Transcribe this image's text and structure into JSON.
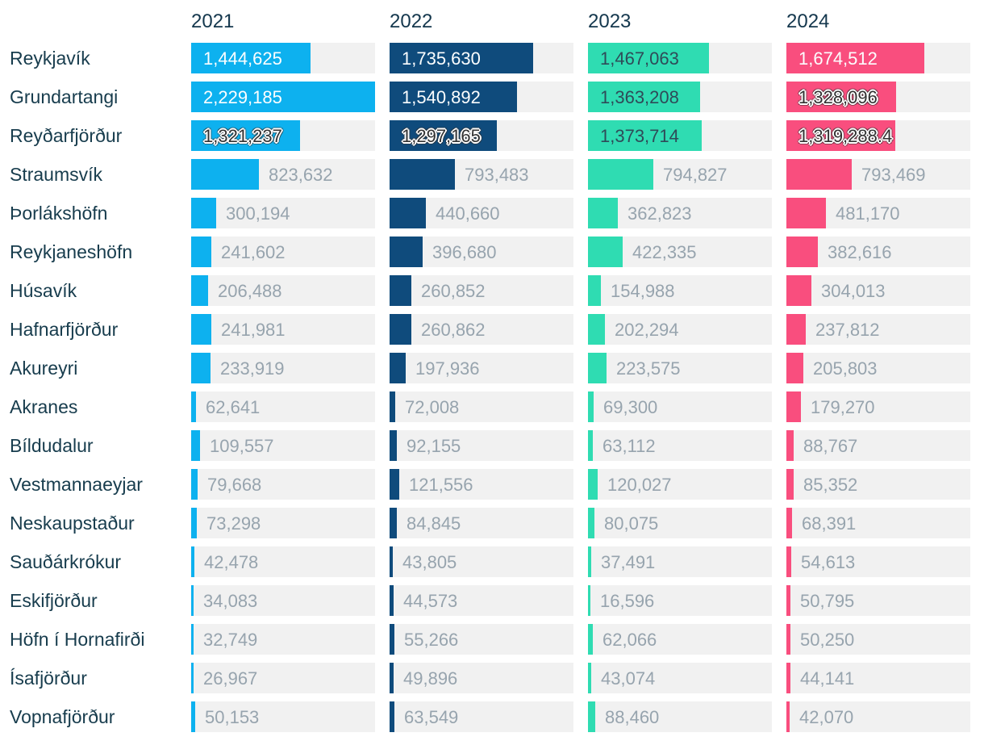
{
  "chart_data": {
    "type": "bar",
    "orientation": "horizontal",
    "legend_position": "top-column-headers",
    "grid": false,
    "columns": [
      "2021",
      "2022",
      "2023",
      "2024"
    ],
    "max_value": 2229185,
    "series_colors": {
      "2021": "#0DB1EF",
      "2022": "#0F4B7C",
      "2023": "#2FDCB2",
      "2024": "#F94E7E"
    },
    "rows": [
      {
        "label": "Reykjavík",
        "values": [
          1444625,
          1735630,
          1467063,
          1674512
        ],
        "outlined": [
          false,
          false,
          false,
          false
        ]
      },
      {
        "label": "Grundartangi",
        "values": [
          2229185,
          1540892,
          1363208,
          1328096
        ],
        "outlined": [
          false,
          false,
          false,
          true
        ]
      },
      {
        "label": "Reyðarfjörður",
        "values": [
          1321237,
          1297165,
          1373714,
          1319288.4
        ],
        "outlined": [
          true,
          true,
          false,
          true
        ]
      },
      {
        "label": "Straumsvík",
        "values": [
          823632,
          793483,
          794827,
          793469
        ],
        "outlined": [
          false,
          false,
          false,
          false
        ]
      },
      {
        "label": "Þorlákshöfn",
        "values": [
          300194,
          440660,
          362823,
          481170
        ],
        "outlined": [
          false,
          false,
          false,
          false
        ]
      },
      {
        "label": "Reykjaneshöfn",
        "values": [
          241602,
          396680,
          422335,
          382616
        ],
        "outlined": [
          false,
          false,
          false,
          false
        ]
      },
      {
        "label": "Húsavík",
        "values": [
          206488,
          260852,
          154988,
          304013
        ],
        "outlined": [
          false,
          false,
          false,
          false
        ]
      },
      {
        "label": "Hafnarfjörður",
        "values": [
          241981,
          260862,
          202294,
          237812
        ],
        "outlined": [
          false,
          false,
          false,
          false
        ]
      },
      {
        "label": "Akureyri",
        "values": [
          233919,
          197936,
          223575,
          205803
        ],
        "outlined": [
          false,
          false,
          false,
          false
        ]
      },
      {
        "label": "Akranes",
        "values": [
          62641,
          72008,
          69300,
          179270
        ],
        "outlined": [
          false,
          false,
          false,
          false
        ]
      },
      {
        "label": "Bíldudalur",
        "values": [
          109557,
          92155,
          63112,
          88767
        ],
        "outlined": [
          false,
          false,
          false,
          false
        ]
      },
      {
        "label": "Vestmannaeyjar",
        "values": [
          79668,
          121556,
          120027,
          85352
        ],
        "outlined": [
          false,
          false,
          false,
          false
        ]
      },
      {
        "label": "Neskaupstaður",
        "values": [
          73298,
          84845,
          80075,
          68391
        ],
        "outlined": [
          false,
          false,
          false,
          false
        ]
      },
      {
        "label": "Sauðárkrókur",
        "values": [
          42478,
          43805,
          37491,
          54613
        ],
        "outlined": [
          false,
          false,
          false,
          false
        ]
      },
      {
        "label": "Eskifjörður",
        "values": [
          34083,
          44573,
          16596,
          50795
        ],
        "outlined": [
          false,
          false,
          false,
          false
        ]
      },
      {
        "label": "Höfn í Hornafirði",
        "values": [
          32749,
          55266,
          62066,
          50250
        ],
        "outlined": [
          false,
          false,
          false,
          false
        ]
      },
      {
        "label": "Ísafjörður",
        "values": [
          26967,
          49896,
          43074,
          44141
        ],
        "outlined": [
          false,
          false,
          false,
          false
        ]
      },
      {
        "label": "Vopnafjörður",
        "values": [
          50153,
          63549,
          88460,
          42070
        ],
        "outlined": [
          false,
          false,
          false,
          false
        ]
      }
    ]
  },
  "ui_colors": {
    "track": "#F1F1F1",
    "label_text": "#173C4D",
    "header_text": "#14374D",
    "value_outside_text": "#97A4AE",
    "value_inside_light": "#FCFEFF",
    "value_inside_dark": "#2F4B58",
    "outline_text": "#333333"
  }
}
